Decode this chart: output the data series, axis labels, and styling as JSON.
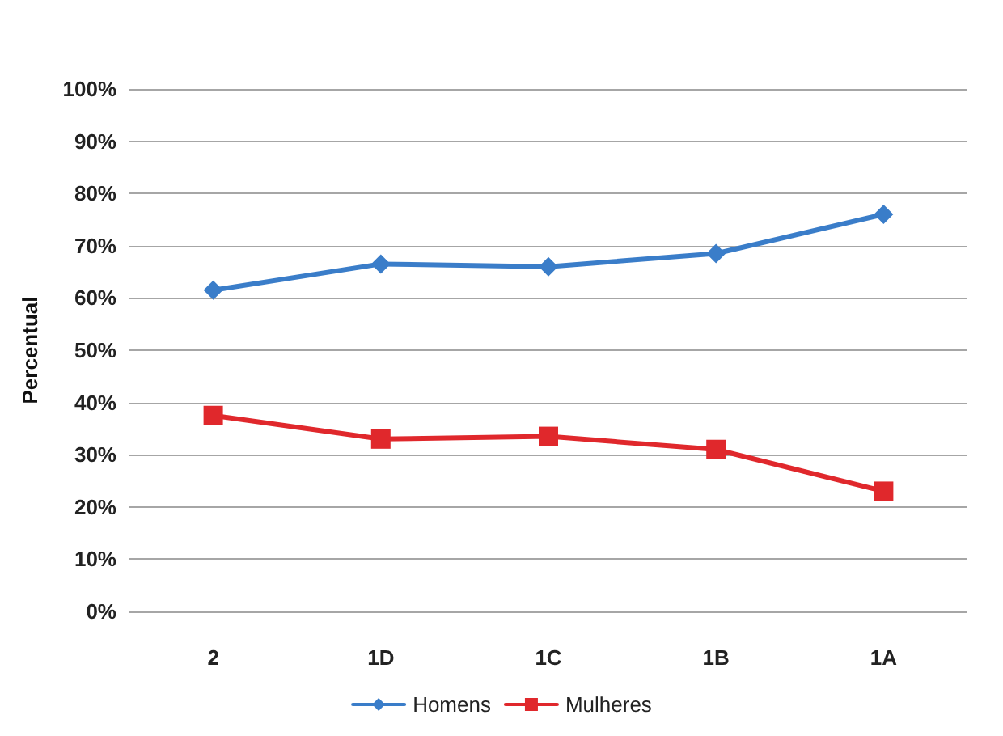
{
  "chart_data": {
    "type": "line",
    "ylabel": "Percentual",
    "categories": [
      "2",
      "1D",
      "1C",
      "1B",
      "1A"
    ],
    "series": [
      {
        "name": "Homens",
        "color": "#3a7dc9",
        "marker": "diamond",
        "values": [
          61.5,
          66.5,
          66,
          68.5,
          76
        ]
      },
      {
        "name": "Mulheres",
        "color": "#e0282c",
        "marker": "square",
        "values": [
          37.5,
          33,
          33.5,
          31,
          23
        ]
      }
    ],
    "ylim": [
      0,
      100
    ],
    "yticks": [
      {
        "value": 0,
        "label": "0%"
      },
      {
        "value": 10,
        "label": "10%"
      },
      {
        "value": 20,
        "label": "20%"
      },
      {
        "value": 30,
        "label": "30%"
      },
      {
        "value": 40,
        "label": "40%"
      },
      {
        "value": 50,
        "label": "50%"
      },
      {
        "value": 60,
        "label": "60%"
      },
      {
        "value": 70,
        "label": "70%"
      },
      {
        "value": 80,
        "label": "80%"
      },
      {
        "value": 90,
        "label": "90%"
      },
      {
        "value": 100,
        "label": "100%"
      }
    ],
    "grid": "y",
    "legend": "bottom",
    "line_style": "solid"
  }
}
